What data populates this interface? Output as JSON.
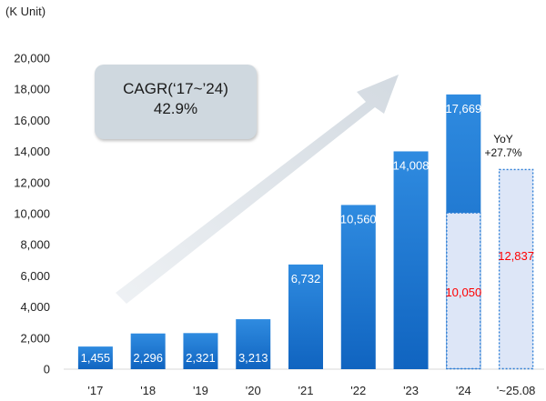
{
  "unit_label": "(K Unit)",
  "annotation": {
    "cagr_label": "CAGR(‘17~’24)",
    "cagr_value": "42.9%",
    "yoy_label": "YoY",
    "yoy_value": "+27.7%"
  },
  "colors": {
    "bar_top": "#2f8be0",
    "bar_bottom": "#1064c0",
    "dashed_fill": "#dde6f7",
    "dashed_stroke": "#2f7fd6",
    "partial_label": "#ff0000",
    "arrow": "#dfe5ea"
  },
  "chart_data": {
    "type": "bar",
    "ylim": [
      0,
      20000
    ],
    "yticks": [
      0,
      2000,
      4000,
      6000,
      8000,
      10000,
      12000,
      14000,
      16000,
      18000,
      20000
    ],
    "ytick_labels": [
      "0",
      "2,000",
      "4,000",
      "6,000",
      "8,000",
      "10,000",
      "12,000",
      "14,000",
      "16,000",
      "18,000",
      "20,000"
    ],
    "categories": [
      "'17",
      "'18",
      "'19",
      "'20",
      "'21",
      "'22",
      "'23",
      "'24",
      "'~25.08"
    ],
    "full_year": {
      "values": [
        1455,
        2296,
        2321,
        3213,
        6732,
        10560,
        14008,
        17669,
        null
      ],
      "labels": [
        "1,455",
        "2,296",
        "2,321",
        "3,213",
        "6,732",
        "10,560",
        "14,008",
        "17,669",
        ""
      ]
    },
    "partial_period": {
      "values": [
        null,
        null,
        null,
        null,
        null,
        null,
        null,
        10050,
        12837
      ],
      "labels": [
        "",
        "",
        "",
        "",
        "",
        "",
        "",
        "10,050",
        "12,837"
      ]
    },
    "grid": false,
    "legend": "none"
  }
}
